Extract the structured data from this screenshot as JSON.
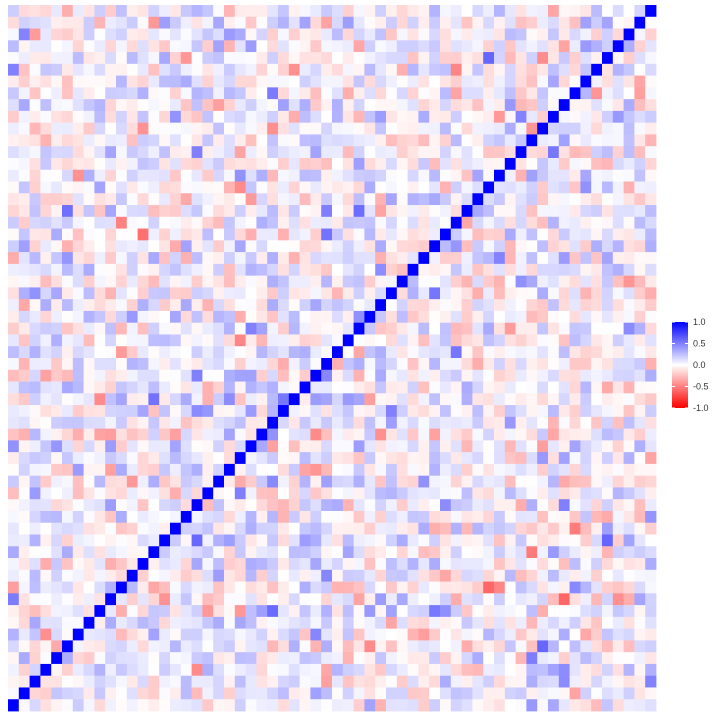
{
  "chart_data": {
    "type": "heatmap",
    "title": "",
    "xlabel": "",
    "ylabel": "",
    "n_variables": 60,
    "diagonal_value": 1.0,
    "off_diagonal_note": "random correlations, mostly within [-0.5, 0.5]",
    "value_range": [
      -1.0,
      1.0
    ],
    "color_scale": {
      "low": "#ff0000",
      "mid": "#ffffff",
      "high": "#0000ff"
    },
    "legend": {
      "position": "right",
      "ticks": [
        "1.0",
        "0.5",
        "0.0",
        "-0.5",
        "-1.0"
      ],
      "tick_values": [
        1.0,
        0.5,
        0.0,
        -0.5,
        -1.0
      ]
    },
    "grid": false,
    "axes_visible": false
  }
}
